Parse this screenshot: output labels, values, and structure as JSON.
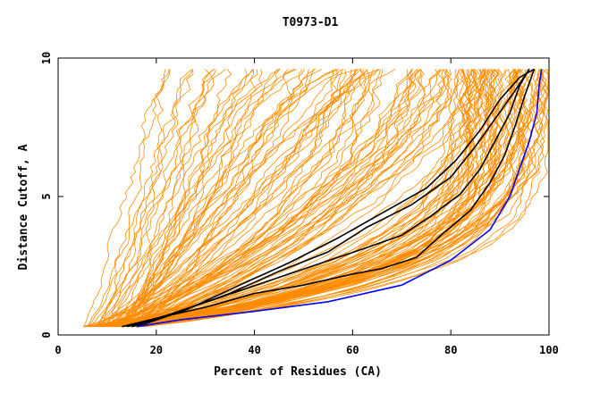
{
  "chart_data": {
    "type": "line",
    "title": "T0973-D1",
    "xlabel": "Percent of Residues (CA)",
    "ylabel": "Distance Cutoff, A",
    "xlim": [
      0,
      100
    ],
    "ylim": [
      0,
      10
    ],
    "x_ticks": [
      0,
      20,
      40,
      60,
      80,
      100
    ],
    "y_ticks": [
      0,
      5,
      10
    ],
    "grid": false,
    "legend": "none",
    "colors": {
      "background_curves": "#ff8c00",
      "highlight_black": "#000000",
      "highlight_blue": "#0000ff"
    },
    "highlight_series": [
      {
        "color": "#0000ff",
        "points": [
          [
            16,
            0.3
          ],
          [
            25,
            0.55
          ],
          [
            40,
            0.85
          ],
          [
            55,
            1.2
          ],
          [
            70,
            1.8
          ],
          [
            80,
            2.7
          ],
          [
            88,
            3.8
          ],
          [
            92,
            5
          ],
          [
            94,
            6
          ],
          [
            96,
            7
          ],
          [
            97.5,
            8
          ],
          [
            98,
            9
          ],
          [
            98.5,
            9.6
          ]
        ]
      },
      {
        "color": "#000000",
        "points": [
          [
            13,
            0.3
          ],
          [
            20,
            0.6
          ],
          [
            30,
            1.0
          ],
          [
            40,
            1.5
          ],
          [
            50,
            1.8
          ],
          [
            60,
            2.2
          ],
          [
            66,
            2.4
          ],
          [
            73,
            2.8
          ],
          [
            78,
            3.6
          ],
          [
            84,
            4.5
          ],
          [
            88,
            5.5
          ],
          [
            91,
            6.5
          ],
          [
            93,
            7.5
          ],
          [
            95,
            8.6
          ],
          [
            97,
            9.6
          ]
        ]
      },
      {
        "color": "#000000",
        "points": [
          [
            14,
            0.3
          ],
          [
            22,
            0.7
          ],
          [
            32,
            1.3
          ],
          [
            42,
            1.9
          ],
          [
            52,
            2.5
          ],
          [
            62,
            3.1
          ],
          [
            70,
            3.6
          ],
          [
            76,
            4.3
          ],
          [
            82,
            5.1
          ],
          [
            86,
            6.0
          ],
          [
            89,
            7.0
          ],
          [
            92,
            8.0
          ],
          [
            94,
            9.0
          ],
          [
            96,
            9.6
          ]
        ]
      },
      {
        "color": "#000000",
        "points": [
          [
            15,
            0.3
          ],
          [
            24,
            0.8
          ],
          [
            35,
            1.5
          ],
          [
            45,
            2.3
          ],
          [
            55,
            3.0
          ],
          [
            63,
            3.9
          ],
          [
            72,
            4.7
          ],
          [
            80,
            5.7
          ],
          [
            85,
            6.8
          ],
          [
            89,
            7.8
          ],
          [
            93,
            8.8
          ],
          [
            96,
            9.6
          ]
        ]
      },
      {
        "color": "#000000",
        "points": [
          [
            16,
            0.3
          ],
          [
            26,
            0.9
          ],
          [
            37,
            1.8
          ],
          [
            47,
            2.6
          ],
          [
            57,
            3.5
          ],
          [
            66,
            4.4
          ],
          [
            75,
            5.3
          ],
          [
            81,
            6.3
          ],
          [
            86,
            7.4
          ],
          [
            90,
            8.5
          ],
          [
            94,
            9.3
          ],
          [
            97,
            9.6
          ]
        ]
      }
    ],
    "background_series_count": 150
  }
}
